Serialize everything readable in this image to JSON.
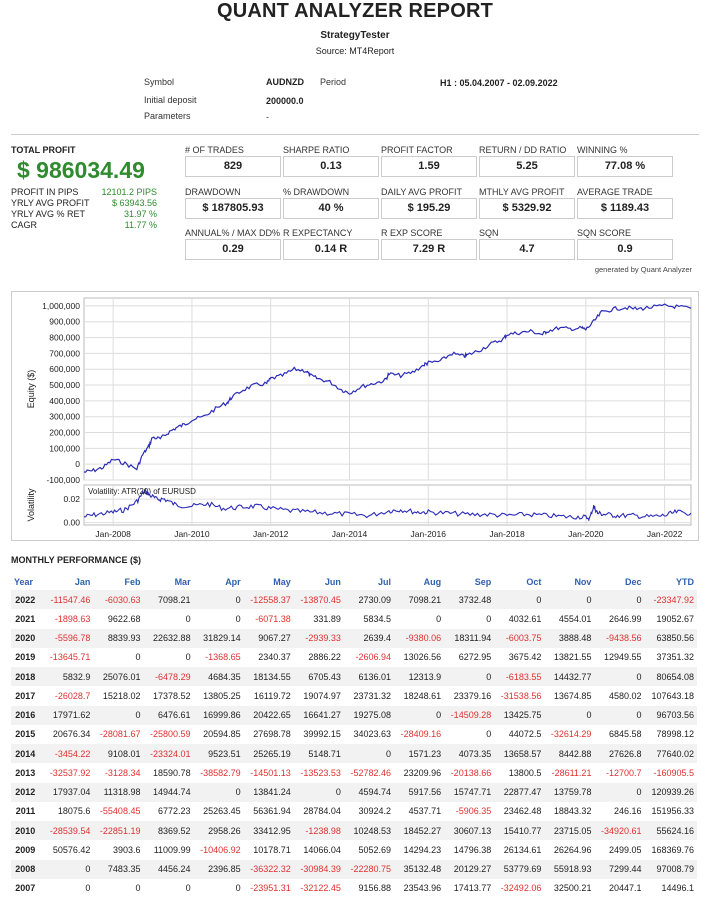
{
  "header": {
    "title": "QUANT ANALYZER REPORT",
    "subtitle": "StrategyTester",
    "source": "Source: MT4Report"
  },
  "info": {
    "symbol_label": "Symbol",
    "symbol_value": "AUDNZD",
    "period_label": "Period",
    "period_value": "H1 : 05.04.2007 - 02.09.2022",
    "deposit_label": "Initial deposit",
    "deposit_value": "200000.0",
    "parameters_label": "Parameters",
    "parameters_value": "-"
  },
  "total_profit": {
    "label": "TOTAL PROFIT",
    "value": "$ 986034.49",
    "rows": [
      {
        "label": "PROFIT IN PIPS",
        "value": "12101.2 PIPS"
      },
      {
        "label": "YRLY AVG PROFIT",
        "value": "$ 63943.56"
      },
      {
        "label": "YRLY AVG % RET",
        "value": "31.97 %"
      },
      {
        "label": "CAGR",
        "value": "11.77 %"
      }
    ]
  },
  "metrics": [
    [
      {
        "label": "# OF TRADES",
        "value": "829"
      },
      {
        "label": "SHARPE RATIO",
        "value": "0.13"
      },
      {
        "label": "PROFIT FACTOR",
        "value": "1.59"
      },
      {
        "label": "RETURN / DD RATIO",
        "value": "5.25"
      },
      {
        "label": "WINNING %",
        "value": "77.08 %"
      }
    ],
    [
      {
        "label": "DRAWDOWN",
        "value": "$ 187805.93"
      },
      {
        "label": "% DRAWDOWN",
        "value": "40 %"
      },
      {
        "label": "DAILY AVG PROFIT",
        "value": "$ 195.29"
      },
      {
        "label": "MTHLY AVG PROFIT",
        "value": "$ 5329.92"
      },
      {
        "label": "AVERAGE TRADE",
        "value": "$ 1189.43"
      }
    ],
    [
      {
        "label": "ANNUAL% / MAX DD%",
        "value": "0.29"
      },
      {
        "label": "R EXPECTANCY",
        "value": "0.14 R"
      },
      {
        "label": "R EXP SCORE",
        "value": "7.29 R"
      },
      {
        "label": "SQN",
        "value": "4.7"
      },
      {
        "label": "SQN SCORE",
        "value": "0.9"
      }
    ]
  ],
  "generated": "generated by Quant Analyzer",
  "chart_data": {
    "type": "line",
    "ylabel": "Equity ($)",
    "ylim": [
      -100000,
      1050000
    ],
    "yticks": [
      "1,000,000",
      "900,000",
      "800,000",
      "700,000",
      "600,000",
      "500,000",
      "400,000",
      "300,000",
      "200,000",
      "100,000",
      "0",
      "-100,000"
    ],
    "ytick_values": [
      1000000,
      900000,
      800000,
      700000,
      600000,
      500000,
      400000,
      300000,
      200000,
      100000,
      0,
      -100000
    ],
    "xticks": [
      "Jan-2008",
      "Jan-2010",
      "Jan-2012",
      "Jan-2014",
      "Jan-2016",
      "Jan-2018",
      "Jan-2020",
      "Jan-2022"
    ],
    "xtick_years": [
      2008,
      2010,
      2012,
      2014,
      2016,
      2018,
      2020,
      2022
    ],
    "xlim": [
      2007.26,
      2022.67
    ],
    "series": [
      {
        "x": [
          2007.26,
          2007.5,
          2007.75,
          2008.0,
          2008.3,
          2008.6,
          2008.75,
          2008.9,
          2009.0,
          2009.2,
          2009.4,
          2009.6,
          2009.8,
          2010.0,
          2010.3,
          2010.6,
          2010.9,
          2011.0,
          2011.3,
          2011.6,
          2011.9,
          2012.0,
          2012.3,
          2012.6,
          2012.9,
          2013.0,
          2013.2,
          2013.5,
          2013.8,
          2014.0,
          2014.3,
          2014.6,
          2014.9,
          2015.0,
          2015.3,
          2015.6,
          2015.9,
          2016.0,
          2016.3,
          2016.6,
          2016.9,
          2017.0,
          2017.3,
          2017.6,
          2017.9,
          2018.0,
          2018.3,
          2018.6,
          2018.9,
          2019.0,
          2019.3,
          2019.6,
          2019.9,
          2020.0,
          2020.2,
          2020.4,
          2020.7,
          2021.0,
          2021.3,
          2021.6,
          2022.0,
          2022.3,
          2022.67
        ],
        "y": [
          -50000,
          -40000,
          -20000,
          30000,
          5000,
          -30000,
          60000,
          110000,
          170000,
          160000,
          200000,
          230000,
          250000,
          280000,
          300000,
          350000,
          390000,
          420000,
          470000,
          500000,
          510000,
          540000,
          560000,
          600000,
          590000,
          560000,
          540000,
          520000,
          470000,
          450000,
          490000,
          510000,
          530000,
          570000,
          560000,
          580000,
          630000,
          640000,
          650000,
          700000,
          680000,
          690000,
          720000,
          760000,
          790000,
          820000,
          830000,
          840000,
          820000,
          840000,
          860000,
          855000,
          860000,
          850000,
          900000,
          960000,
          980000,
          990000,
          980000,
          990000,
          1000000,
          995000,
          985000
        ]
      }
    ],
    "volatility": {
      "label": "Volatility",
      "legend": "Volatility: ATR(20) of EURUSD",
      "yticks": [
        "0.02",
        "0.00"
      ],
      "ytick_values": [
        0.02,
        0.0
      ],
      "ylim": [
        -0.002,
        0.032
      ],
      "x": [
        2007.26,
        2007.6,
        2008.0,
        2008.3,
        2008.6,
        2008.8,
        2008.9,
        2009.1,
        2009.3,
        2009.6,
        2010.0,
        2010.4,
        2010.8,
        2011.2,
        2011.6,
        2012.0,
        2012.5,
        2013.0,
        2013.5,
        2014.0,
        2014.5,
        2015.0,
        2015.3,
        2015.7,
        2016.0,
        2016.5,
        2017.0,
        2017.5,
        2018.0,
        2018.5,
        2019.0,
        2019.5,
        2019.9,
        2020.1,
        2020.2,
        2020.3,
        2020.5,
        2020.8,
        2021.2,
        2021.6,
        2022.0,
        2022.3,
        2022.67
      ],
      "y": [
        0.005,
        0.007,
        0.009,
        0.011,
        0.018,
        0.027,
        0.024,
        0.02,
        0.02,
        0.015,
        0.014,
        0.016,
        0.012,
        0.013,
        0.014,
        0.012,
        0.01,
        0.009,
        0.008,
        0.007,
        0.006,
        0.01,
        0.011,
        0.009,
        0.009,
        0.008,
        0.007,
        0.007,
        0.006,
        0.007,
        0.006,
        0.005,
        0.005,
        0.004,
        0.014,
        0.008,
        0.007,
        0.006,
        0.006,
        0.005,
        0.006,
        0.009,
        0.008
      ]
    }
  },
  "monthly": {
    "title": "MONTHLY PERFORMANCE ($)",
    "headers": [
      "Year",
      "Jan",
      "Feb",
      "Mar",
      "Apr",
      "May",
      "Jun",
      "Jul",
      "Aug",
      "Sep",
      "Oct",
      "Nov",
      "Dec",
      "YTD"
    ],
    "rows": [
      [
        "2022",
        "-11547.46",
        "-6030.63",
        "7098.21",
        "0",
        "-12558.37",
        "-13870.45",
        "2730.09",
        "7098.21",
        "3732.48",
        "0",
        "0",
        "0",
        "-23347.92"
      ],
      [
        "2021",
        "-1898.63",
        "9622.68",
        "0",
        "0",
        "-6071.38",
        "331.89",
        "5834.5",
        "0",
        "0",
        "4032.61",
        "4554.01",
        "2646.99",
        "19052.67"
      ],
      [
        "2020",
        "-5596.78",
        "8839.93",
        "22632.88",
        "31829.14",
        "9067.27",
        "-2939.33",
        "2639.4",
        "-9380.06",
        "18311.94",
        "-6003.75",
        "3888.48",
        "-9438.56",
        "63850.56"
      ],
      [
        "2019",
        "-13645.71",
        "0",
        "0",
        "-1368.65",
        "2340.37",
        "2886.22",
        "-2606.94",
        "13026.56",
        "6272.95",
        "3675.42",
        "13821.55",
        "12949.55",
        "37351.32"
      ],
      [
        "2018",
        "5832.9",
        "25076.01",
        "-6478.29",
        "4684.35",
        "18134.55",
        "6705.43",
        "6136.01",
        "12313.9",
        "0",
        "-6183.55",
        "14432.77",
        "0",
        "80654.08"
      ],
      [
        "2017",
        "-26028.7",
        "15218.02",
        "17378.52",
        "13805.25",
        "16119.72",
        "19074.97",
        "23731.32",
        "18248.61",
        "23379.16",
        "-31538.56",
        "13674.85",
        "4580.02",
        "107643.18"
      ],
      [
        "2016",
        "17971.62",
        "0",
        "6476.61",
        "16999.86",
        "20422.65",
        "16641.27",
        "19275.08",
        "0",
        "-14509.28",
        "13425.75",
        "0",
        "0",
        "96703.56"
      ],
      [
        "2015",
        "20676.34",
        "-28081.67",
        "-25800.59",
        "20594.85",
        "27698.78",
        "39992.15",
        "34023.63",
        "-28409.16",
        "0",
        "44072.5",
        "-32614.29",
        "6845.58",
        "78998.12"
      ],
      [
        "2014",
        "-3454.22",
        "9108.01",
        "-23324.01",
        "9523.51",
        "25265.19",
        "5148.71",
        "0",
        "1571.23",
        "4073.35",
        "13658.57",
        "8442.88",
        "27626.8",
        "77640.02"
      ],
      [
        "2013",
        "-32537.92",
        "-3128.34",
        "18590.78",
        "-38582.79",
        "-14501.13",
        "-13523.53",
        "-52782.46",
        "23209.96",
        "-20138.66",
        "13800.5",
        "-28611.21",
        "-12700.7",
        "-160905.5"
      ],
      [
        "2012",
        "17937.04",
        "11318.98",
        "14944.74",
        "0",
        "13841.24",
        "0",
        "4594.74",
        "5917.56",
        "15747.71",
        "22877.47",
        "13759.78",
        "0",
        "120939.26"
      ],
      [
        "2011",
        "18075.6",
        "-55408.45",
        "6772.23",
        "25263.45",
        "56361.94",
        "28784.04",
        "30924.2",
        "4537.71",
        "-5906.35",
        "23462.48",
        "18843.32",
        "246.16",
        "151956.33"
      ],
      [
        "2010",
        "-28539.54",
        "-22851.19",
        "8369.52",
        "2958.26",
        "33412.95",
        "-1238.98",
        "10248.53",
        "18452.27",
        "30607.13",
        "15410.77",
        "23715.05",
        "-34920.61",
        "55624.16"
      ],
      [
        "2009",
        "50576.42",
        "3903.6",
        "11009.99",
        "-10406.92",
        "10178.71",
        "14066.04",
        "5052.69",
        "14294.23",
        "14796.38",
        "26134.61",
        "26264.96",
        "2499.05",
        "168369.76"
      ],
      [
        "2008",
        "0",
        "7483.35",
        "4456.24",
        "2396.85",
        "-36322.32",
        "-30984.39",
        "-22280.75",
        "35132.48",
        "20129.27",
        "53779.69",
        "55918.93",
        "7299.44",
        "97008.79"
      ],
      [
        "2007",
        "0",
        "0",
        "0",
        "0",
        "-23951.31",
        "-32122.45",
        "9156.88",
        "23543.96",
        "17413.77",
        "-32492.06",
        "32500.21",
        "20447.1",
        "14496.1"
      ]
    ]
  }
}
